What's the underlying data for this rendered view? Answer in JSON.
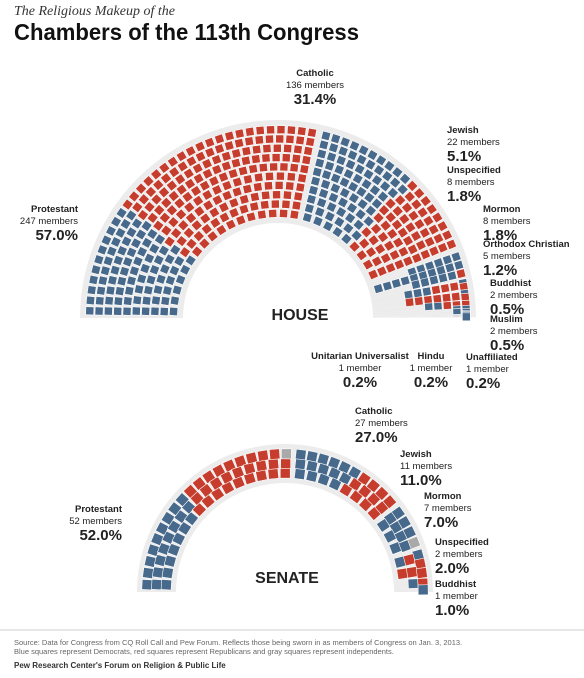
{
  "kicker": "The Religious Makeup of the",
  "title": "Chambers of the 113th Congress",
  "chart_data": [
    {
      "type": "parliament",
      "title": "HOUSE",
      "categories": [
        "Protestant",
        "Catholic",
        "Jewish",
        "Unspecified",
        "Mormon",
        "Orthodox Christian",
        "Buddhist",
        "Muslim",
        "Unitarian Universalist",
        "Hindu",
        "Unaffiliated"
      ],
      "values": [
        247,
        136,
        22,
        8,
        8,
        5,
        2,
        2,
        1,
        1,
        1
      ],
      "value_labels": [
        "247 members",
        "136 members",
        "22 members",
        "8 members",
        "8 members",
        "5 members",
        "2 members",
        "2 members",
        "1 member",
        "1 member",
        "1 member"
      ],
      "shares": [
        {
          "value": 57.0,
          "label": "57.0%"
        },
        {
          "value": 31.4,
          "label": "31.4%"
        },
        {
          "value": 5.1,
          "label": "5.1%"
        },
        {
          "value": 1.8,
          "label": "1.8%"
        },
        {
          "value": 1.8,
          "label": "1.8%"
        },
        {
          "value": 1.2,
          "label": "1.2%"
        },
        {
          "value": 0.5,
          "label": "0.5%"
        },
        {
          "value": 0.5,
          "label": "0.5%"
        },
        {
          "value": 0.2,
          "label": "0.2%"
        },
        {
          "value": 0.2,
          "label": "0.2%"
        },
        {
          "value": 0.2,
          "label": "0.2%"
        }
      ],
      "series": [
        {
          "color": "#47698b",
          "values": [
            85,
            76,
            21,
            4,
            1,
            2,
            2,
            2,
            1,
            1,
            1
          ]
        },
        {
          "color": "#c63d2d",
          "values": [
            162,
            60,
            1,
            4,
            7,
            3,
            0,
            0,
            0,
            0,
            0
          ]
        },
        {
          "color": "#a9a9a9",
          "values": [
            0,
            0,
            0,
            0,
            0,
            0,
            0,
            0,
            0,
            0,
            0
          ]
        }
      ]
    },
    {
      "type": "parliament",
      "title": "SENATE",
      "categories": [
        "Protestant",
        "Catholic",
        "Jewish",
        "Mormon",
        "Unspecified",
        "Buddhist"
      ],
      "values": [
        52,
        27,
        11,
        7,
        2,
        1
      ],
      "value_labels": [
        "52 members",
        "27 members",
        "11 members",
        "7 members",
        "2 members",
        "1 member"
      ],
      "shares": [
        {
          "value": 52.0,
          "label": "52.0%"
        },
        {
          "value": 27.0,
          "label": "27.0%"
        },
        {
          "value": 11.0,
          "label": "11.0%"
        },
        {
          "value": 7.0,
          "label": "7.0%"
        },
        {
          "value": 2.0,
          "label": "2.0%"
        },
        {
          "value": 1.0,
          "label": "1.0%"
        }
      ],
      "series": [
        {
          "color": "#47698b",
          "values": [
            24,
            15,
            10,
            2,
            1,
            1
          ]
        },
        {
          "color": "#c63d2d",
          "values": [
            27,
            12,
            0,
            5,
            1,
            0
          ]
        },
        {
          "color": "#a9a9a9",
          "values": [
            1,
            0,
            1,
            0,
            0,
            0
          ]
        }
      ]
    }
  ],
  "footer": {
    "source": "Source: Data for Congress from CQ Roll Call and Pew Forum. Reflects those being sworn in as members of Congress on Jan. 3, 2013.",
    "note": "Blue squares represent Democrats, red squares represent Republicans and gray squares represent independents.",
    "credit": "Pew Research Center's Forum on Religion & Public Life"
  }
}
